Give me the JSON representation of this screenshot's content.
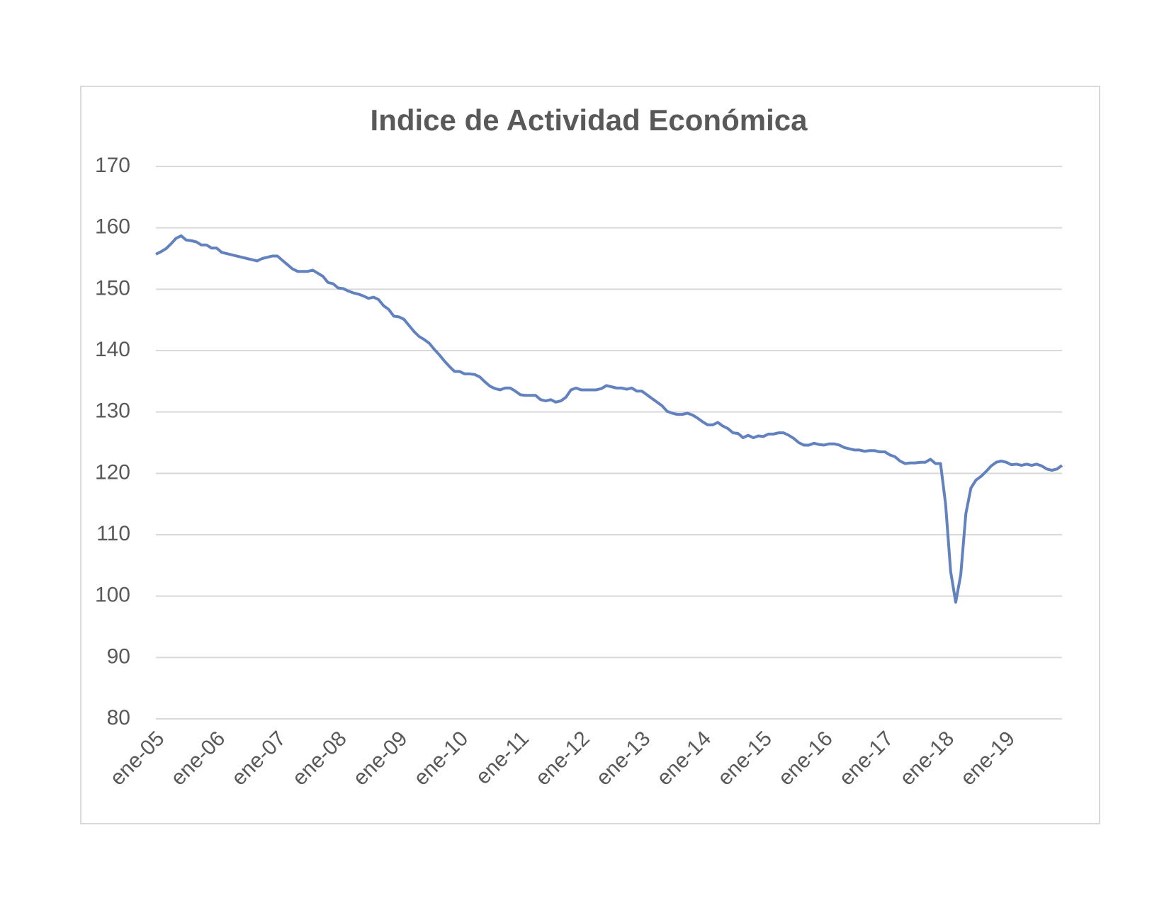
{
  "chart_data": {
    "type": "line",
    "title": "Indice de Actividad Económica",
    "categories": [
      "ene-05",
      null,
      null,
      null,
      null,
      null,
      null,
      null,
      null,
      null,
      null,
      null,
      "ene-06",
      null,
      null,
      null,
      null,
      null,
      null,
      null,
      null,
      null,
      null,
      null,
      "ene-07",
      null,
      null,
      null,
      null,
      null,
      null,
      null,
      null,
      null,
      null,
      null,
      "ene-08",
      null,
      null,
      null,
      null,
      null,
      null,
      null,
      null,
      null,
      null,
      null,
      "ene-09",
      null,
      null,
      null,
      null,
      null,
      null,
      null,
      null,
      null,
      null,
      null,
      "ene-10",
      null,
      null,
      null,
      null,
      null,
      null,
      null,
      null,
      null,
      null,
      null,
      "ene-11",
      null,
      null,
      null,
      null,
      null,
      null,
      null,
      null,
      null,
      null,
      null,
      "ene-12",
      null,
      null,
      null,
      null,
      null,
      null,
      null,
      null,
      null,
      null,
      null,
      "ene-13",
      null,
      null,
      null,
      null,
      null,
      null,
      null,
      null,
      null,
      null,
      null,
      "ene-14",
      null,
      null,
      null,
      null,
      null,
      null,
      null,
      null,
      null,
      null,
      null,
      "ene-15",
      null,
      null,
      null,
      null,
      null,
      null,
      null,
      null,
      null,
      null,
      null,
      "ene-16",
      null,
      null,
      null,
      null,
      null,
      null,
      null,
      null,
      null,
      null,
      null,
      "ene-17",
      null,
      null,
      null,
      null,
      null,
      null,
      null,
      null,
      null,
      null,
      null,
      "ene-18",
      null,
      null,
      null,
      null,
      null,
      null,
      null,
      null,
      null,
      null,
      null,
      "ene-19",
      null,
      null,
      null,
      null,
      null,
      null,
      null,
      null,
      null,
      null,
      null
    ],
    "series": [
      {
        "color": "#6282bf",
        "values": [
          155.7,
          156.1,
          156.6,
          157.4,
          158.3,
          158.7,
          158.0,
          157.9,
          157.7,
          157.2,
          157.2,
          156.7,
          156.7,
          156.0,
          155.8,
          155.6,
          155.4,
          155.2,
          155.0,
          154.8,
          154.6,
          155.0,
          155.2,
          155.4,
          155.4,
          154.7,
          154.0,
          153.3,
          152.9,
          152.9,
          152.9,
          153.1,
          152.6,
          152.1,
          151.1,
          150.9,
          150.2,
          150.1,
          149.7,
          149.4,
          149.2,
          148.9,
          148.5,
          148.7,
          148.3,
          147.3,
          146.7,
          145.6,
          145.5,
          145.1,
          144.1,
          143.1,
          142.3,
          141.8,
          141.2,
          140.2,
          139.3,
          138.3,
          137.4,
          136.6,
          136.6,
          136.2,
          136.2,
          136.1,
          135.7,
          134.9,
          134.2,
          133.8,
          133.6,
          133.9,
          133.9,
          133.4,
          132.8,
          132.7,
          132.7,
          132.7,
          132.0,
          131.8,
          132.0,
          131.6,
          131.8,
          132.4,
          133.6,
          133.9,
          133.6,
          133.6,
          133.6,
          133.6,
          133.8,
          134.3,
          134.1,
          133.9,
          133.9,
          133.7,
          133.9,
          133.4,
          133.4,
          132.8,
          132.2,
          131.6,
          131.0,
          130.1,
          129.8,
          129.6,
          129.6,
          129.8,
          129.5,
          129.0,
          128.4,
          127.9,
          127.9,
          128.3,
          127.7,
          127.3,
          126.6,
          126.5,
          125.8,
          126.2,
          125.8,
          126.1,
          126.0,
          126.4,
          126.4,
          126.6,
          126.6,
          126.2,
          125.7,
          125.0,
          124.6,
          124.6,
          124.9,
          124.7,
          124.6,
          124.8,
          124.8,
          124.6,
          124.2,
          124.0,
          123.8,
          123.8,
          123.6,
          123.7,
          123.7,
          123.5,
          123.5,
          123.0,
          122.7,
          122.0,
          121.6,
          121.7,
          121.7,
          121.8,
          121.8,
          122.3,
          121.6,
          121.6,
          115.0,
          104.0,
          99.0,
          103.5,
          113.4,
          117.6,
          118.9,
          119.5,
          120.3,
          121.2,
          121.8,
          122.0,
          121.8,
          121.4,
          121.5,
          121.3,
          121.5,
          121.3,
          121.5,
          121.2,
          120.7,
          120.5,
          120.7,
          121.3
        ]
      }
    ],
    "ylim": [
      80,
      170
    ],
    "yticks": [
      80,
      90,
      100,
      110,
      120,
      130,
      140,
      150,
      160,
      170
    ],
    "grid": true
  }
}
